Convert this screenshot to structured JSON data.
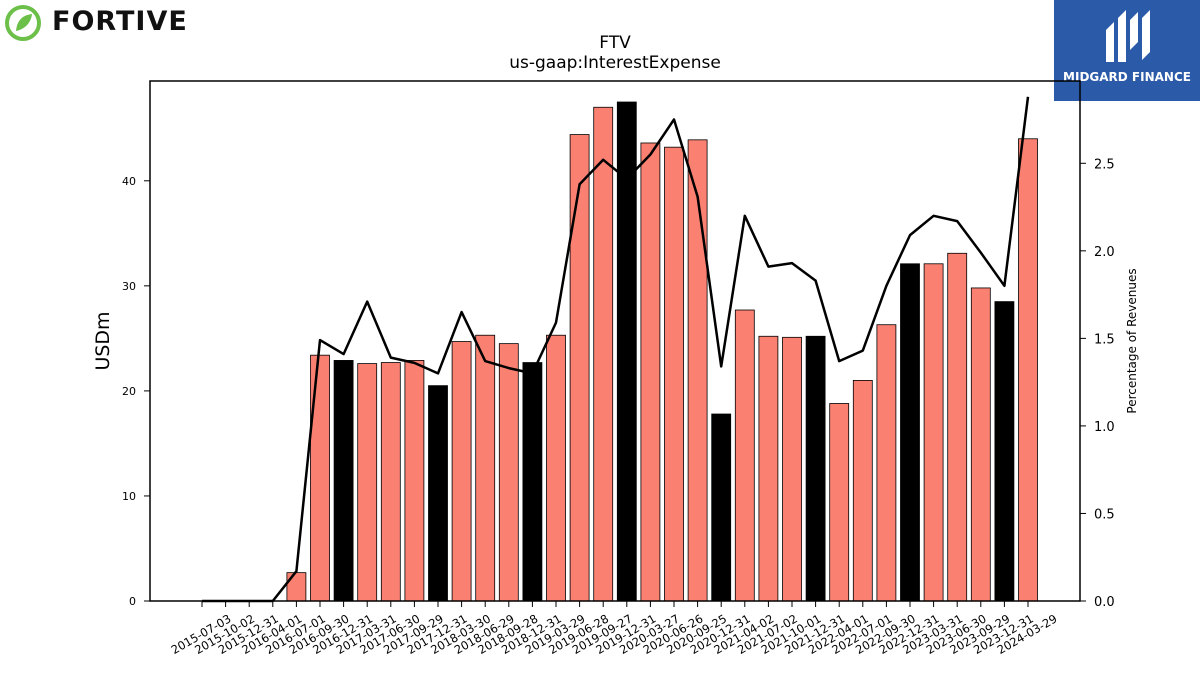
{
  "logos": {
    "left_text": "FORTIVE",
    "right_text": "MIDGARD FINANCE"
  },
  "chart_data": {
    "type": "bar",
    "title": "FTV",
    "subtitle": "us-gaap:InterestExpense",
    "ylabel": "USDm",
    "y2label": "Percentage of Revenues",
    "ylim": [
      0,
      49.5
    ],
    "y2lim": [
      0,
      2.97
    ],
    "yticks": [
      0,
      10,
      20,
      30,
      40
    ],
    "y2ticks": [
      0.0,
      0.5,
      1.0,
      1.5,
      2.0,
      2.5
    ],
    "y2tick_labels": [
      "0.0",
      "0.5",
      "1.0",
      "1.5",
      "2.0",
      "2.5"
    ],
    "categories": [
      "2015-07-03",
      "2015-10-02",
      "2015-12-31",
      "2016-04-01",
      "2016-07-01",
      "2016-09-30",
      "2016-12-31",
      "2017-03-31",
      "2017-06-30",
      "2017-09-29",
      "2017-12-31",
      "2018-03-30",
      "2018-06-29",
      "2018-09-28",
      "2018-12-31",
      "2019-03-29",
      "2019-06-28",
      "2019-09-27",
      "2019-12-31",
      "2020-03-27",
      "2020-06-26",
      "2020-09-25",
      "2020-12-31",
      "2021-04-02",
      "2021-07-02",
      "2021-10-01",
      "2021-12-31",
      "2022-04-01",
      "2022-07-01",
      "2022-09-30",
      "2022-12-31",
      "2023-03-31",
      "2023-06-30",
      "2023-09-29",
      "2023-12-31",
      "2024-03-29"
    ],
    "series": [
      {
        "type": "bar",
        "values": [
          0,
          0,
          0,
          0,
          2.7,
          23.4,
          22.9,
          22.6,
          22.7,
          22.9,
          20.5,
          24.7,
          25.3,
          24.5,
          22.7,
          25.3,
          44.4,
          47.0,
          47.5,
          43.6,
          43.2,
          43.9,
          17.8,
          27.7,
          25.2,
          25.1,
          25.2,
          18.8,
          21.0,
          26.3,
          32.1,
          32.1,
          33.1,
          29.8,
          28.5,
          44.0
        ],
        "colors": [
          "#fa8072",
          "#fa8072",
          "#fa8072",
          "#fa8072",
          "#fa8072",
          "#fa8072",
          "#000000",
          "#fa8072",
          "#fa8072",
          "#fa8072",
          "#000000",
          "#fa8072",
          "#fa8072",
          "#fa8072",
          "#000000",
          "#fa8072",
          "#fa8072",
          "#fa8072",
          "#000000",
          "#fa8072",
          "#fa8072",
          "#fa8072",
          "#000000",
          "#fa8072",
          "#fa8072",
          "#fa8072",
          "#000000",
          "#fa8072",
          "#fa8072",
          "#fa8072",
          "#000000",
          "#fa8072",
          "#fa8072",
          "#fa8072",
          "#000000",
          "#fa8072"
        ]
      },
      {
        "type": "line",
        "axis": "right",
        "color": "#000000",
        "values": [
          0,
          0,
          0,
          0,
          0.17,
          1.49,
          1.41,
          1.71,
          1.39,
          1.36,
          1.3,
          1.65,
          1.37,
          1.33,
          1.3,
          1.59,
          2.38,
          2.52,
          2.41,
          2.55,
          2.75,
          2.31,
          1.34,
          2.2,
          1.91,
          1.93,
          1.83,
          1.37,
          1.43,
          1.8,
          2.09,
          2.2,
          2.17,
          1.99,
          1.8,
          2.88
        ]
      }
    ],
    "grid": false,
    "legend": "none"
  }
}
